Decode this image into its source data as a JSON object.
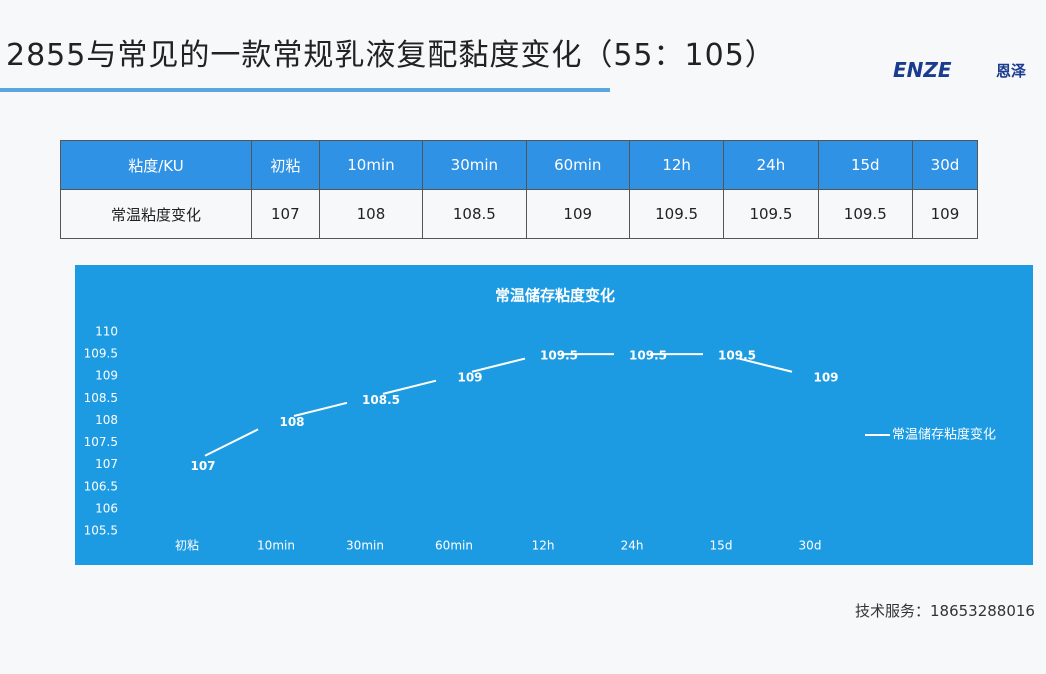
{
  "header": {
    "title": "2855与常见的一款常规乳液复配黏度变化（55：105）",
    "logo": "ENZE",
    "logo_cn": "恩泽"
  },
  "table": {
    "header": [
      "粘度/KU",
      "初粘",
      "10min",
      "30min",
      "60min",
      "12h",
      "24h",
      "15d",
      "30d"
    ],
    "rows": [
      [
        "常温粘度变化",
        107,
        108,
        108.5,
        109,
        109.5,
        109.5,
        109.5,
        109
      ]
    ]
  },
  "chart_data": {
    "type": "line",
    "title": "常温储存粘度变化",
    "categories": [
      "初粘",
      "10min",
      "30min",
      "60min",
      "12h",
      "24h",
      "15d",
      "30d"
    ],
    "series": [
      {
        "name": "常温储存粘度变化",
        "color": "#ffffff",
        "values": [
          107,
          108,
          108.5,
          109,
          109.5,
          109.5,
          109.5,
          109
        ]
      }
    ],
    "ylim": [
      105.5,
      110
    ],
    "yticks": [
      105.5,
      106,
      106.5,
      107,
      107.5,
      108,
      108.5,
      109,
      109.5,
      110
    ],
    "legend": "right",
    "background": "#1d9be2"
  },
  "footer": "技术服务：18653288016"
}
